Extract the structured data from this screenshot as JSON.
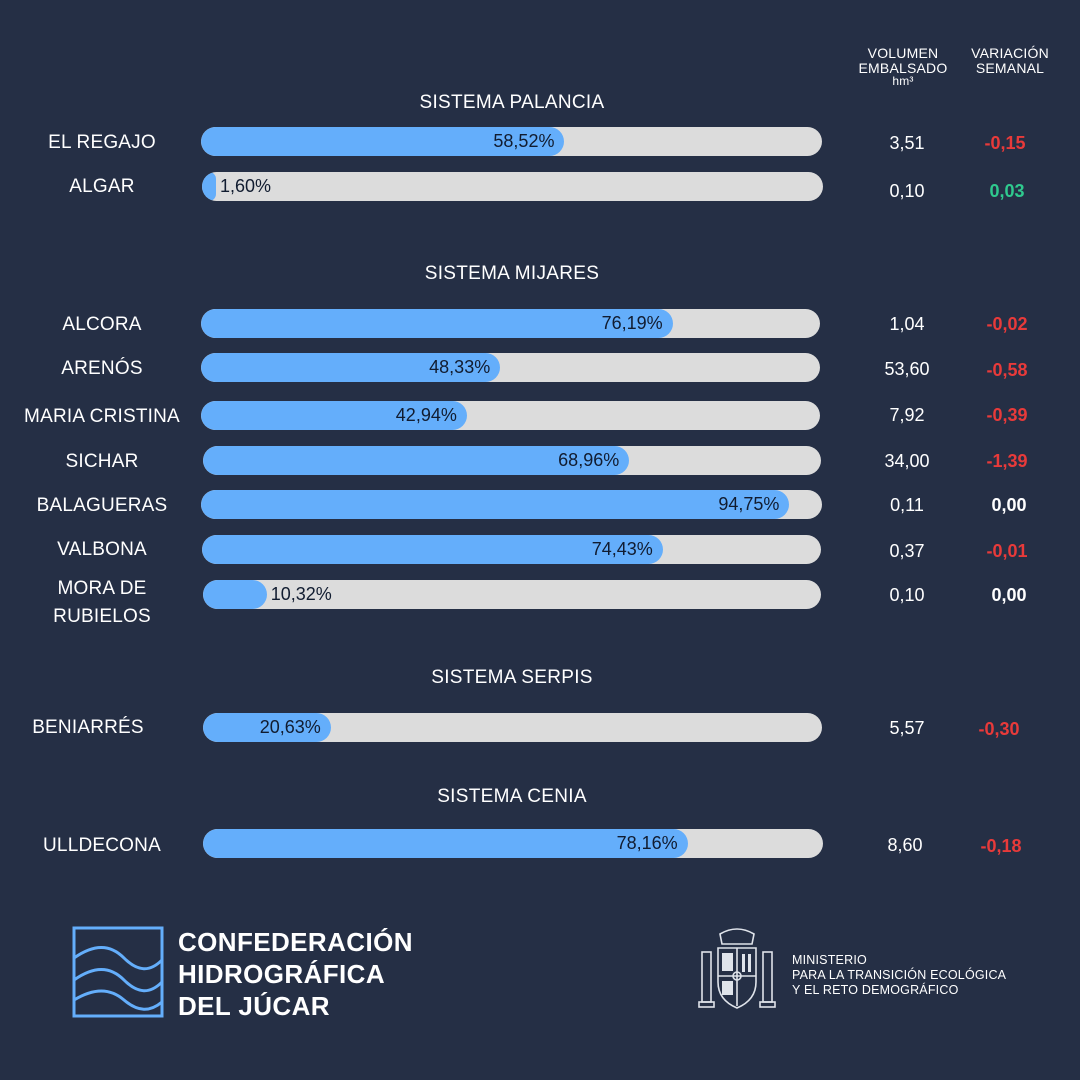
{
  "headers": {
    "volumen_line1": "VOLUMEN",
    "volumen_line2": "EMBALSADO",
    "volumen_unit": "hm³",
    "variacion_line1": "VARIACIÓN",
    "variacion_line2": "SEMANAL"
  },
  "colors": {
    "background": "#252f45",
    "bar_fill": "#64aefb",
    "bar_track": "#dcdcdc",
    "negative": "#e83a3a",
    "positive": "#2fc98e",
    "neutral": "#ffffff"
  },
  "sections": [
    {
      "title": "SISTEMA PALANCIA",
      "rows": [
        {
          "name": "EL REGAJO",
          "percent": 58.52,
          "label": "58,52%",
          "volume": "3,51",
          "variation": "-0,15",
          "trend": "negative"
        },
        {
          "name": "ALGAR",
          "percent": 1.6,
          "label": "1,60%",
          "volume": "0,10",
          "variation": "0,03",
          "trend": "positive"
        }
      ]
    },
    {
      "title": "SISTEMA MIJARES",
      "rows": [
        {
          "name": "ALCORA",
          "percent": 76.19,
          "label": "76,19%",
          "volume": "1,04",
          "variation": "-0,02",
          "trend": "negative"
        },
        {
          "name": "ARENÓS",
          "percent": 48.33,
          "label": "48,33%",
          "volume": "53,60",
          "variation": "-0,58",
          "trend": "negative"
        },
        {
          "name": "MARIA CRISTINA",
          "percent": 42.94,
          "label": "42,94%",
          "volume": "7,92",
          "variation": "-0,39",
          "trend": "negative"
        },
        {
          "name": "SICHAR",
          "percent": 68.96,
          "label": "68,96%",
          "volume": "34,00",
          "variation": "-1,39",
          "trend": "negative"
        },
        {
          "name": "BALAGUERAS",
          "percent": 94.75,
          "label": "94,75%",
          "volume": "0,11",
          "variation": "0,00",
          "trend": "neutral"
        },
        {
          "name": "VALBONA",
          "percent": 74.43,
          "label": "74,43%",
          "volume": "0,37",
          "variation": "-0,01",
          "trend": "negative"
        },
        {
          "name": "MORA DE RUBIELOS",
          "percent": 10.32,
          "label": "10,32%",
          "volume": "0,10",
          "variation": "0,00",
          "trend": "neutral"
        }
      ]
    },
    {
      "title": "SISTEMA SERPIS",
      "rows": [
        {
          "name": "BENIARRÉS",
          "percent": 20.63,
          "label": "20,63%",
          "volume": "5,57",
          "variation": "-0,30",
          "trend": "negative"
        }
      ]
    },
    {
      "title": "SISTEMA CENIA",
      "rows": [
        {
          "name": "ULLDECONA",
          "percent": 78.16,
          "label": "78,16%",
          "volume": "8,60",
          "variation": "-0,18",
          "trend": "negative"
        }
      ]
    }
  ],
  "footer": {
    "chj_line1": "CONFEDERACIÓN",
    "chj_line2": "HIDROGRÁFICA",
    "chj_line3": "DEL JÚCAR",
    "ministerio_line1": "MINISTERIO",
    "ministerio_line2": "PARA LA TRANSICIÓN ECOLÓGICA",
    "ministerio_line3": "Y EL RETO DEMOGRÁFICO",
    "chj_logo_icon": "waves-logo-icon",
    "coat_of_arms_icon": "spain-coat-of-arms-icon"
  }
}
